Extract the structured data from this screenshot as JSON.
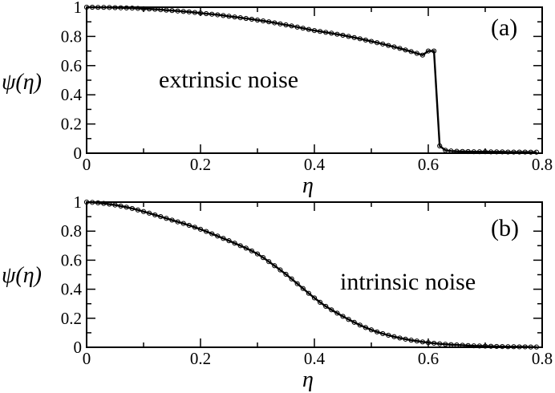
{
  "chart_data": [
    {
      "type": "line",
      "panel_label": "(a)",
      "annotation": "extrinsic noise",
      "title": "",
      "xlabel": "η",
      "ylabel": "ψ(η)",
      "xlim": [
        0,
        0.8
      ],
      "ylim": [
        0,
        1
      ],
      "xticks": [
        0,
        0.2,
        0.4,
        0.6,
        0.8
      ],
      "xtick_labels": [
        "0",
        "0.2",
        "0.4",
        "0.6",
        "0.8"
      ],
      "yticks": [
        0,
        0.2,
        0.4,
        0.6,
        0.8,
        1
      ],
      "ytick_labels": [
        "0",
        "0.2",
        "0.4",
        "0.6",
        "0.8",
        "1"
      ],
      "grid": false,
      "series": [
        {
          "x": [
            0,
            0.01,
            0.02,
            0.03,
            0.04,
            0.05,
            0.06,
            0.07,
            0.08,
            0.09,
            0.1,
            0.11,
            0.12,
            0.13,
            0.14,
            0.15,
            0.16,
            0.17,
            0.18,
            0.19,
            0.2,
            0.21,
            0.22,
            0.23,
            0.24,
            0.25,
            0.26,
            0.27,
            0.28,
            0.29,
            0.3,
            0.31,
            0.32,
            0.33,
            0.34,
            0.35,
            0.36,
            0.37,
            0.38,
            0.39,
            0.4,
            0.41,
            0.42,
            0.43,
            0.44,
            0.45,
            0.46,
            0.47,
            0.48,
            0.49,
            0.5,
            0.51,
            0.52,
            0.53,
            0.54,
            0.55,
            0.56,
            0.57,
            0.58,
            0.59,
            0.6,
            0.61,
            0.62,
            0.63,
            0.64,
            0.65,
            0.66,
            0.67,
            0.68,
            0.69,
            0.7,
            0.71,
            0.72,
            0.73,
            0.74,
            0.75,
            0.76,
            0.77,
            0.78,
            0.79
          ],
          "y": [
            1.0,
            1.0,
            0.999,
            0.999,
            0.998,
            0.997,
            0.996,
            0.995,
            0.994,
            0.992,
            0.99,
            0.988,
            0.986,
            0.983,
            0.98,
            0.977,
            0.974,
            0.971,
            0.968,
            0.964,
            0.96,
            0.956,
            0.952,
            0.948,
            0.943,
            0.938,
            0.933,
            0.928,
            0.923,
            0.918,
            0.912,
            0.906,
            0.9,
            0.893,
            0.886,
            0.879,
            0.872,
            0.864,
            0.856,
            0.848,
            0.84,
            0.834,
            0.828,
            0.822,
            0.815,
            0.808,
            0.8,
            0.792,
            0.784,
            0.775,
            0.766,
            0.757,
            0.748,
            0.738,
            0.728,
            0.718,
            0.707,
            0.696,
            0.684,
            0.672,
            0.7,
            0.7,
            0.05,
            0.02,
            0.015,
            0.013,
            0.012,
            0.011,
            0.01,
            0.01,
            0.01,
            0.009,
            0.009,
            0.009,
            0.008,
            0.008,
            0.008,
            0.008,
            0.007,
            0.007
          ]
        }
      ]
    },
    {
      "type": "line",
      "panel_label": "(b)",
      "annotation": "intrinsic noise",
      "title": "",
      "xlabel": "η",
      "ylabel": "ψ(η)",
      "xlim": [
        0,
        0.8
      ],
      "ylim": [
        0,
        1
      ],
      "xticks": [
        0,
        0.2,
        0.4,
        0.6,
        0.8
      ],
      "xtick_labels": [
        "0",
        "0.2",
        "0.4",
        "0.6",
        "0.8"
      ],
      "yticks": [
        0,
        0.2,
        0.4,
        0.6,
        0.8,
        1
      ],
      "ytick_labels": [
        "0",
        "0.2",
        "0.4",
        "0.6",
        "0.8",
        "1"
      ],
      "grid": false,
      "series": [
        {
          "x": [
            0,
            0.01,
            0.02,
            0.03,
            0.04,
            0.05,
            0.06,
            0.07,
            0.08,
            0.09,
            0.1,
            0.11,
            0.12,
            0.13,
            0.14,
            0.15,
            0.16,
            0.17,
            0.18,
            0.19,
            0.2,
            0.21,
            0.22,
            0.23,
            0.24,
            0.25,
            0.26,
            0.27,
            0.28,
            0.29,
            0.3,
            0.31,
            0.32,
            0.33,
            0.34,
            0.35,
            0.36,
            0.37,
            0.38,
            0.39,
            0.4,
            0.41,
            0.42,
            0.43,
            0.44,
            0.45,
            0.46,
            0.47,
            0.48,
            0.49,
            0.5,
            0.51,
            0.52,
            0.53,
            0.54,
            0.55,
            0.56,
            0.57,
            0.58,
            0.59,
            0.6,
            0.61,
            0.62,
            0.63,
            0.64,
            0.65,
            0.66,
            0.67,
            0.68,
            0.69,
            0.7,
            0.71,
            0.72,
            0.73,
            0.74,
            0.75,
            0.76,
            0.77,
            0.78,
            0.79
          ],
          "y": [
            1.0,
            0.998,
            0.995,
            0.991,
            0.986,
            0.98,
            0.973,
            0.965,
            0.956,
            0.946,
            0.935,
            0.924,
            0.912,
            0.9,
            0.888,
            0.876,
            0.864,
            0.853,
            0.84,
            0.827,
            0.813,
            0.798,
            0.782,
            0.766,
            0.75,
            0.734,
            0.717,
            0.7,
            0.683,
            0.664,
            0.643,
            0.618,
            0.59,
            0.562,
            0.533,
            0.503,
            0.471,
            0.438,
            0.405,
            0.372,
            0.34,
            0.31,
            0.282,
            0.258,
            0.235,
            0.213,
            0.192,
            0.172,
            0.153,
            0.136,
            0.12,
            0.106,
            0.094,
            0.083,
            0.073,
            0.064,
            0.056,
            0.049,
            0.043,
            0.037,
            0.032,
            0.028,
            0.024,
            0.021,
            0.018,
            0.016,
            0.014,
            0.012,
            0.01,
            0.009,
            0.008,
            0.007,
            0.006,
            0.005,
            0.004,
            0.004,
            0.003,
            0.003,
            0.002,
            0.002
          ]
        }
      ]
    }
  ]
}
